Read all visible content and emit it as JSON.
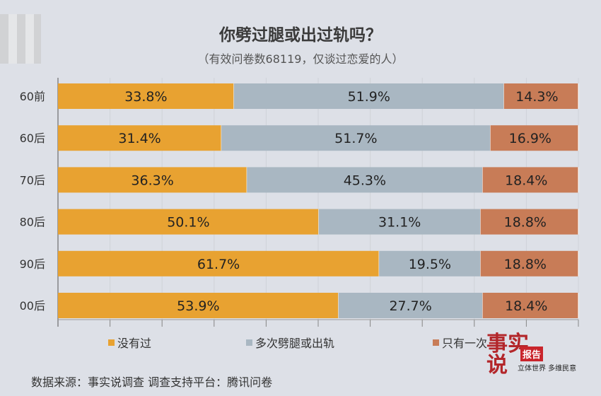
{
  "chart_data": {
    "type": "bar",
    "orientation": "horizontal-stacked-100",
    "title": "你劈过腿或出过轨吗？",
    "subtitle": "（有效问卷数68119，仅谈过恋爱的人）",
    "categories": [
      "60前",
      "60后",
      "70后",
      "80后",
      "90后",
      "00后"
    ],
    "series": [
      {
        "name": "没有过",
        "color": "#e8a231",
        "values": [
          33.8,
          31.4,
          36.3,
          50.1,
          61.7,
          53.9
        ]
      },
      {
        "name": "多次劈腿或出轨",
        "color": "#a9b7c2",
        "values": [
          51.9,
          51.7,
          45.3,
          31.1,
          19.5,
          27.7
        ]
      },
      {
        "name": "只有一次",
        "color": "#c87c57",
        "values": [
          14.3,
          16.9,
          18.4,
          18.8,
          18.8,
          18.4
        ]
      }
    ],
    "xlim": [
      0,
      100
    ],
    "legend": "bottom"
  },
  "source": "数据来源：事实说调查  调查支持平台：腾讯问卷",
  "logo": {
    "text": "事实说",
    "tag": "报告",
    "slogan": "立体世界 多维民意"
  }
}
